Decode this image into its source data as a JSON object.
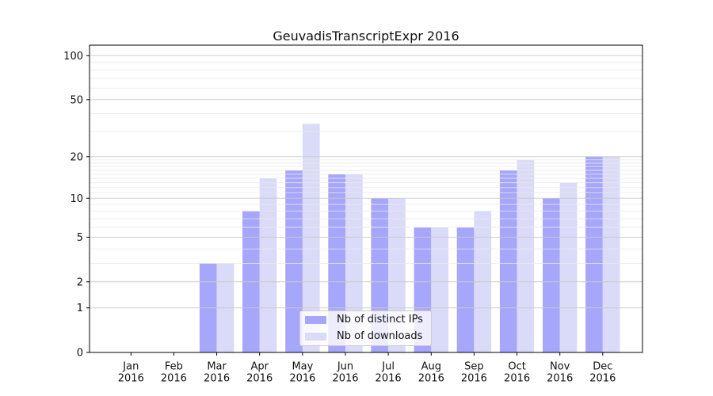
{
  "chart_data": {
    "type": "bar",
    "title": "GeuvadisTranscriptExpr 2016",
    "months": [
      "Jan",
      "Feb",
      "Mar",
      "Apr",
      "May",
      "Jun",
      "Jul",
      "Aug",
      "Sep",
      "Oct",
      "Nov",
      "Dec"
    ],
    "year_label": "2016",
    "series": [
      {
        "name": "Nb of distinct IPs",
        "color": "#a6a6fa",
        "values": [
          0,
          0,
          3,
          8,
          16,
          15,
          10,
          6,
          6,
          16,
          10,
          20
        ]
      },
      {
        "name": "Nb of downloads",
        "color": "#dadaf9",
        "values": [
          0,
          0,
          3,
          14,
          34,
          15,
          10,
          6,
          8,
          19,
          13,
          20
        ]
      }
    ],
    "y_scale": "log1p",
    "y_ticks": [
      0,
      1,
      2,
      5,
      10,
      20,
      50,
      100
    ],
    "y_minor_ticks": [
      3,
      4,
      6,
      7,
      8,
      9,
      11,
      12,
      13,
      14,
      15,
      16,
      17,
      18,
      19,
      30,
      40,
      60,
      70,
      80,
      90
    ],
    "ylim": [
      0,
      118
    ],
    "grid": "both",
    "grid_above_bars": true,
    "legend_position": "lower center",
    "colors": {
      "major_grid": "#c9c9c9",
      "minor_grid": "#eaeaea",
      "axis": "#000000",
      "background": "#ffffff"
    }
  }
}
